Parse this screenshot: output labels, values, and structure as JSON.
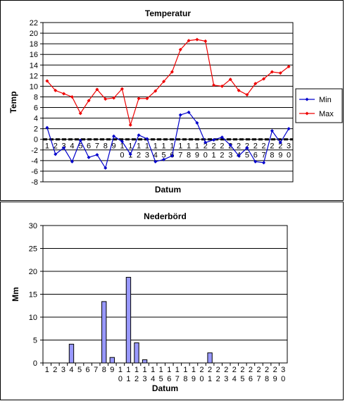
{
  "chart_data": [
    {
      "type": "line",
      "title": "Temperatur",
      "xlabel": "Datum",
      "ylabel": "Temp",
      "ylim": [
        -8,
        22
      ],
      "yticks": [
        -8,
        -6,
        -4,
        -2,
        0,
        2,
        4,
        6,
        8,
        10,
        12,
        14,
        16,
        18,
        20,
        22
      ],
      "grid": true,
      "legend": "right",
      "x_tick_labels": [
        [
          "1",
          ""
        ],
        [
          "2",
          ""
        ],
        [
          "3",
          ""
        ],
        [
          "4",
          ""
        ],
        [
          "5",
          ""
        ],
        [
          "6",
          ""
        ],
        [
          "7",
          ""
        ],
        [
          "8",
          ""
        ],
        [
          "9",
          ""
        ],
        [
          "1",
          "0"
        ],
        [
          "1",
          "1"
        ],
        [
          "1",
          "2"
        ],
        [
          "1",
          "3"
        ],
        [
          "1",
          "4"
        ],
        [
          "1",
          "5"
        ],
        [
          "1",
          "6"
        ],
        [
          "1",
          "7"
        ],
        [
          "1",
          "8"
        ],
        [
          "1",
          "9"
        ],
        [
          "2",
          "0"
        ],
        [
          "2",
          "1"
        ],
        [
          "2",
          "2"
        ],
        [
          "2",
          "3"
        ],
        [
          "2",
          "4"
        ],
        [
          "2",
          "5"
        ],
        [
          "2",
          "6"
        ],
        [
          "2",
          "7"
        ],
        [
          "2",
          "8"
        ],
        [
          "2",
          "9"
        ],
        [
          "3",
          "0"
        ]
      ],
      "series": [
        {
          "name": "Min",
          "color": "#0000cc",
          "marker": "diamond",
          "values": [
            2.2,
            -2.8,
            -1.6,
            -4.2,
            -0.2,
            -3.4,
            -2.9,
            -5.4,
            0.6,
            -0.4,
            -2.8,
            0.8,
            0.1,
            -4.2,
            -3.8,
            -3.1,
            4.6,
            5.1,
            3.1,
            -0.6,
            -0.1,
            0.4,
            -1.1,
            -3.1,
            -1.6,
            -4.2,
            -4.4,
            1.6,
            -0.6,
            2.0
          ]
        },
        {
          "name": "Max",
          "color": "#ee0000",
          "marker": "diamond",
          "values": [
            11.0,
            9.2,
            8.6,
            8.0,
            4.9,
            7.3,
            9.4,
            7.6,
            7.8,
            9.5,
            2.7,
            7.7,
            7.7,
            9.1,
            10.9,
            12.7,
            16.9,
            18.6,
            18.8,
            18.5,
            10.2,
            10.0,
            11.3,
            9.2,
            8.4,
            10.5,
            11.4,
            12.7,
            12.5,
            13.7
          ]
        }
      ]
    },
    {
      "type": "bar",
      "title": "Nederbörd",
      "xlabel": "Datum",
      "ylabel": "Mm",
      "ylim": [
        0,
        30
      ],
      "yticks": [
        0,
        5,
        10,
        15,
        20,
        25,
        30
      ],
      "grid": true,
      "bar_color": "#9999ff",
      "x_tick_labels": [
        [
          "1",
          ""
        ],
        [
          "2",
          ""
        ],
        [
          "3",
          ""
        ],
        [
          "4",
          ""
        ],
        [
          "5",
          ""
        ],
        [
          "6",
          ""
        ],
        [
          "7",
          ""
        ],
        [
          "8",
          ""
        ],
        [
          "9",
          ""
        ],
        [
          "1",
          "0"
        ],
        [
          "1",
          "1"
        ],
        [
          "1",
          "2"
        ],
        [
          "1",
          "3"
        ],
        [
          "1",
          "4"
        ],
        [
          "1",
          "5"
        ],
        [
          "1",
          "6"
        ],
        [
          "1",
          "7"
        ],
        [
          "1",
          "8"
        ],
        [
          "1",
          "9"
        ],
        [
          "2",
          "0"
        ],
        [
          "2",
          "1"
        ],
        [
          "2",
          "2"
        ],
        [
          "2",
          "3"
        ],
        [
          "2",
          "4"
        ],
        [
          "2",
          "5"
        ],
        [
          "2",
          "6"
        ],
        [
          "2",
          "7"
        ],
        [
          "2",
          "8"
        ],
        [
          "2",
          "9"
        ],
        [
          "3",
          "0"
        ]
      ],
      "values": [
        0,
        0,
        0,
        4.1,
        0,
        0,
        0,
        13.4,
        1.2,
        0,
        18.7,
        4.4,
        0.7,
        0,
        0,
        0,
        0,
        0,
        0,
        0,
        2.2,
        0,
        0,
        0,
        0,
        0,
        0,
        0,
        0,
        0
      ]
    }
  ]
}
